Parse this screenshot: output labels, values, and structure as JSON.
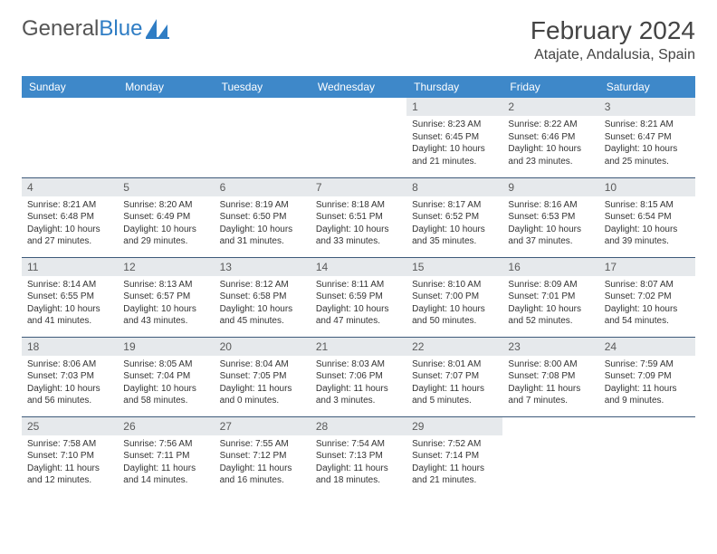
{
  "logo": {
    "text_left": "General",
    "text_right": "Blue"
  },
  "title": "February 2024",
  "location": "Atajate, Andalusia, Spain",
  "colors": {
    "header_bg": "#3e88c9",
    "header_text": "#ffffff",
    "daynum_bg": "#e6e9ec",
    "row_border": "#3e5a7a",
    "logo_blue": "#2f7dc4"
  },
  "day_headers": [
    "Sunday",
    "Monday",
    "Tuesday",
    "Wednesday",
    "Thursday",
    "Friday",
    "Saturday"
  ],
  "weeks": [
    [
      null,
      null,
      null,
      null,
      {
        "n": "1",
        "sunrise": "8:23 AM",
        "sunset": "6:45 PM",
        "daylight": "10 hours and 21 minutes."
      },
      {
        "n": "2",
        "sunrise": "8:22 AM",
        "sunset": "6:46 PM",
        "daylight": "10 hours and 23 minutes."
      },
      {
        "n": "3",
        "sunrise": "8:21 AM",
        "sunset": "6:47 PM",
        "daylight": "10 hours and 25 minutes."
      }
    ],
    [
      {
        "n": "4",
        "sunrise": "8:21 AM",
        "sunset": "6:48 PM",
        "daylight": "10 hours and 27 minutes."
      },
      {
        "n": "5",
        "sunrise": "8:20 AM",
        "sunset": "6:49 PM",
        "daylight": "10 hours and 29 minutes."
      },
      {
        "n": "6",
        "sunrise": "8:19 AM",
        "sunset": "6:50 PM",
        "daylight": "10 hours and 31 minutes."
      },
      {
        "n": "7",
        "sunrise": "8:18 AM",
        "sunset": "6:51 PM",
        "daylight": "10 hours and 33 minutes."
      },
      {
        "n": "8",
        "sunrise": "8:17 AM",
        "sunset": "6:52 PM",
        "daylight": "10 hours and 35 minutes."
      },
      {
        "n": "9",
        "sunrise": "8:16 AM",
        "sunset": "6:53 PM",
        "daylight": "10 hours and 37 minutes."
      },
      {
        "n": "10",
        "sunrise": "8:15 AM",
        "sunset": "6:54 PM",
        "daylight": "10 hours and 39 minutes."
      }
    ],
    [
      {
        "n": "11",
        "sunrise": "8:14 AM",
        "sunset": "6:55 PM",
        "daylight": "10 hours and 41 minutes."
      },
      {
        "n": "12",
        "sunrise": "8:13 AM",
        "sunset": "6:57 PM",
        "daylight": "10 hours and 43 minutes."
      },
      {
        "n": "13",
        "sunrise": "8:12 AM",
        "sunset": "6:58 PM",
        "daylight": "10 hours and 45 minutes."
      },
      {
        "n": "14",
        "sunrise": "8:11 AM",
        "sunset": "6:59 PM",
        "daylight": "10 hours and 47 minutes."
      },
      {
        "n": "15",
        "sunrise": "8:10 AM",
        "sunset": "7:00 PM",
        "daylight": "10 hours and 50 minutes."
      },
      {
        "n": "16",
        "sunrise": "8:09 AM",
        "sunset": "7:01 PM",
        "daylight": "10 hours and 52 minutes."
      },
      {
        "n": "17",
        "sunrise": "8:07 AM",
        "sunset": "7:02 PM",
        "daylight": "10 hours and 54 minutes."
      }
    ],
    [
      {
        "n": "18",
        "sunrise": "8:06 AM",
        "sunset": "7:03 PM",
        "daylight": "10 hours and 56 minutes."
      },
      {
        "n": "19",
        "sunrise": "8:05 AM",
        "sunset": "7:04 PM",
        "daylight": "10 hours and 58 minutes."
      },
      {
        "n": "20",
        "sunrise": "8:04 AM",
        "sunset": "7:05 PM",
        "daylight": "11 hours and 0 minutes."
      },
      {
        "n": "21",
        "sunrise": "8:03 AM",
        "sunset": "7:06 PM",
        "daylight": "11 hours and 3 minutes."
      },
      {
        "n": "22",
        "sunrise": "8:01 AM",
        "sunset": "7:07 PM",
        "daylight": "11 hours and 5 minutes."
      },
      {
        "n": "23",
        "sunrise": "8:00 AM",
        "sunset": "7:08 PM",
        "daylight": "11 hours and 7 minutes."
      },
      {
        "n": "24",
        "sunrise": "7:59 AM",
        "sunset": "7:09 PM",
        "daylight": "11 hours and 9 minutes."
      }
    ],
    [
      {
        "n": "25",
        "sunrise": "7:58 AM",
        "sunset": "7:10 PM",
        "daylight": "11 hours and 12 minutes."
      },
      {
        "n": "26",
        "sunrise": "7:56 AM",
        "sunset": "7:11 PM",
        "daylight": "11 hours and 14 minutes."
      },
      {
        "n": "27",
        "sunrise": "7:55 AM",
        "sunset": "7:12 PM",
        "daylight": "11 hours and 16 minutes."
      },
      {
        "n": "28",
        "sunrise": "7:54 AM",
        "sunset": "7:13 PM",
        "daylight": "11 hours and 18 minutes."
      },
      {
        "n": "29",
        "sunrise": "7:52 AM",
        "sunset": "7:14 PM",
        "daylight": "11 hours and 21 minutes."
      },
      null,
      null
    ]
  ],
  "labels": {
    "sunrise": "Sunrise:",
    "sunset": "Sunset:",
    "daylight": "Daylight:"
  }
}
